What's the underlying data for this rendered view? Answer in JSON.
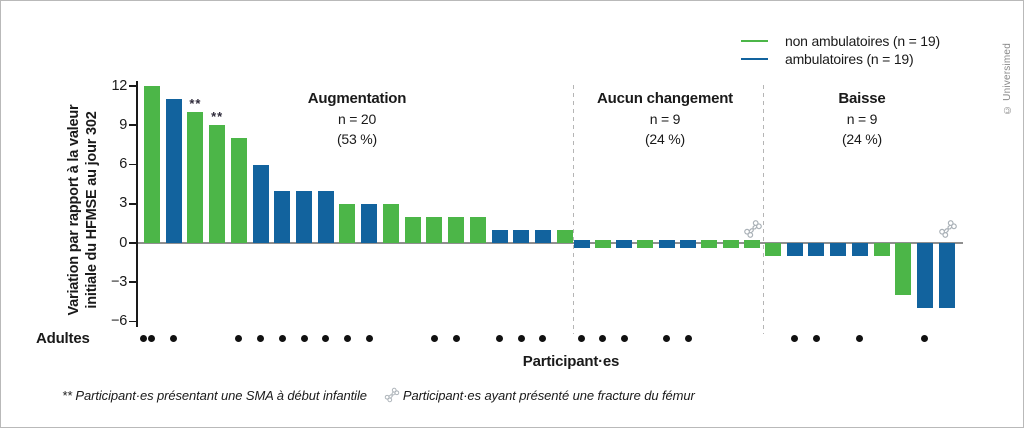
{
  "meta": {
    "copyright": "© Universimed"
  },
  "legend": {
    "items": [
      {
        "label": "non ambulatoires (n = 19)",
        "color": "#4CB648",
        "series": "non_ambulatoires"
      },
      {
        "label": "ambulatoires (n = 19)",
        "color": "#12639E",
        "series": "ambulatoires"
      }
    ]
  },
  "axis": {
    "y_title_line1": "Variation par rapport à la valeur",
    "y_title_line2": "initiale du HFMSE au jour 302",
    "x_title": "Participant·es",
    "adults_row_label": "Adultes",
    "ticks": [
      {
        "label": "12",
        "value": 12
      },
      {
        "label": "9",
        "value": 9
      },
      {
        "label": "6",
        "value": 6
      },
      {
        "label": "3",
        "value": 3
      },
      {
        "label": "0",
        "value": 0
      },
      {
        "label": "−3",
        "value": -3
      },
      {
        "label": "−6",
        "value": -6
      }
    ]
  },
  "footnote": {
    "asterisks": "**",
    "text1": " Participant·es présentant une SMA à début infantile",
    "text2": "Participant·es ayant présenté une fracture du fémur"
  },
  "chart_data": {
    "type": "bar",
    "title": "",
    "ylabel": "Variation par rapport à la valeur initiale du HFMSE au jour 302",
    "xlabel": "Participant·es",
    "ylim": [
      -6,
      12
    ],
    "yticks": [
      12,
      9,
      6,
      3,
      0,
      -3,
      -6
    ],
    "grid": false,
    "legend_position": "top-right",
    "colors": {
      "non_ambulatoires": "#4CB648",
      "ambulatoires": "#12639E"
    },
    "marker_meanings": {
      "asterisks": "Participant·es présentant une SMA à début infantile",
      "bone": "Participant·es ayant présenté une fracture du fémur",
      "adult_dot": "Adultes"
    },
    "groups": [
      {
        "name": "Augmentation",
        "n_label": "n = 20",
        "pct_label": "(53 %)",
        "bars": [
          {
            "v": 12,
            "series": "non_ambulatoires",
            "adult": 2,
            "marker": null
          },
          {
            "v": 11,
            "series": "ambulatoires",
            "adult": 1,
            "marker": null
          },
          {
            "v": 10,
            "series": "non_ambulatoires",
            "adult": 0,
            "marker": "asterisks"
          },
          {
            "v": 9,
            "series": "non_ambulatoires",
            "adult": 0,
            "marker": "asterisks"
          },
          {
            "v": 8,
            "series": "non_ambulatoires",
            "adult": 1,
            "marker": null
          },
          {
            "v": 6,
            "series": "ambulatoires",
            "adult": 1,
            "marker": null
          },
          {
            "v": 4,
            "series": "ambulatoires",
            "adult": 1,
            "marker": null
          },
          {
            "v": 4,
            "series": "ambulatoires",
            "adult": 1,
            "marker": null
          },
          {
            "v": 4,
            "series": "ambulatoires",
            "adult": 1,
            "marker": null
          },
          {
            "v": 3,
            "series": "non_ambulatoires",
            "adult": 1,
            "marker": null
          },
          {
            "v": 3,
            "series": "ambulatoires",
            "adult": 1,
            "marker": null
          },
          {
            "v": 3,
            "series": "non_ambulatoires",
            "adult": 0,
            "marker": null
          },
          {
            "v": 2,
            "series": "non_ambulatoires",
            "adult": 0,
            "marker": null
          },
          {
            "v": 2,
            "series": "non_ambulatoires",
            "adult": 1,
            "marker": null
          },
          {
            "v": 2,
            "series": "non_ambulatoires",
            "adult": 1,
            "marker": null
          },
          {
            "v": 2,
            "series": "non_ambulatoires",
            "adult": 0,
            "marker": null
          },
          {
            "v": 1,
            "series": "ambulatoires",
            "adult": 1,
            "marker": null
          },
          {
            "v": 1,
            "series": "ambulatoires",
            "adult": 1,
            "marker": null
          },
          {
            "v": 1,
            "series": "ambulatoires",
            "adult": 1,
            "marker": null
          },
          {
            "v": 1,
            "series": "non_ambulatoires",
            "adult": 0,
            "marker": null
          }
        ]
      },
      {
        "name": "Aucun changement",
        "n_label": "n = 9",
        "pct_label": "(24 %)",
        "bars": [
          {
            "v": 0,
            "series": "ambulatoires",
            "adult": 1,
            "marker": null
          },
          {
            "v": 0,
            "series": "non_ambulatoires",
            "adult": 1,
            "marker": null
          },
          {
            "v": 0,
            "series": "ambulatoires",
            "adult": 1,
            "marker": null
          },
          {
            "v": 0,
            "series": "non_ambulatoires",
            "adult": 0,
            "marker": null
          },
          {
            "v": 0,
            "series": "ambulatoires",
            "adult": 1,
            "marker": null
          },
          {
            "v": 0,
            "series": "ambulatoires",
            "adult": 1,
            "marker": null
          },
          {
            "v": 0,
            "series": "non_ambulatoires",
            "adult": 0,
            "marker": null
          },
          {
            "v": 0,
            "series": "non_ambulatoires",
            "adult": 0,
            "marker": null
          },
          {
            "v": 0,
            "series": "non_ambulatoires",
            "adult": 0,
            "marker": "bone"
          }
        ]
      },
      {
        "name": "Baisse",
        "n_label": "n = 9",
        "pct_label": "(24 %)",
        "bars": [
          {
            "v": -1,
            "series": "non_ambulatoires",
            "adult": 0,
            "marker": null
          },
          {
            "v": -1,
            "series": "ambulatoires",
            "adult": 1,
            "marker": null
          },
          {
            "v": -1,
            "series": "ambulatoires",
            "adult": 1,
            "marker": null
          },
          {
            "v": -1,
            "series": "ambulatoires",
            "adult": 0,
            "marker": null
          },
          {
            "v": -1,
            "series": "ambulatoires",
            "adult": 1,
            "marker": null
          },
          {
            "v": -1,
            "series": "non_ambulatoires",
            "adult": 0,
            "marker": null
          },
          {
            "v": -4,
            "series": "non_ambulatoires",
            "adult": 0,
            "marker": null
          },
          {
            "v": -5,
            "series": "ambulatoires",
            "adult": 1,
            "marker": null
          },
          {
            "v": -5,
            "series": "ambulatoires",
            "adult": 0,
            "marker": "bone"
          }
        ]
      }
    ]
  }
}
